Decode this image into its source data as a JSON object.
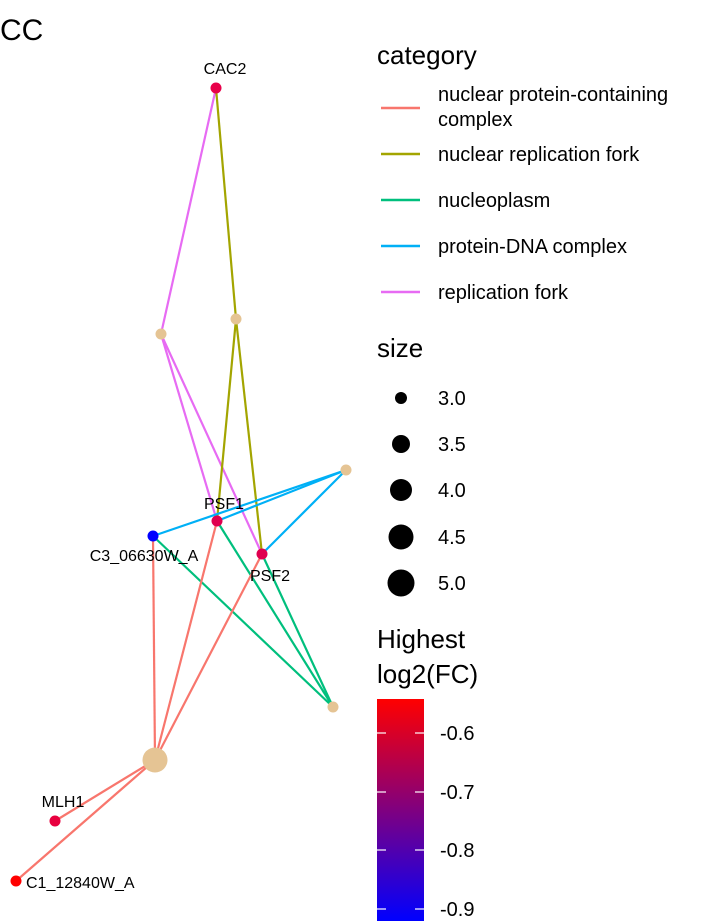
{
  "title": "CC",
  "legend_category": {
    "title": "category",
    "items": [
      {
        "label_lines": [
          "nuclear protein-containing",
          "complex"
        ],
        "color": "#F8766D"
      },
      {
        "label_lines": [
          "nuclear replication fork"
        ],
        "color": "#A3A500"
      },
      {
        "label_lines": [
          "nucleoplasm"
        ],
        "color": "#00BF7D"
      },
      {
        "label_lines": [
          "protein-DNA complex"
        ],
        "color": "#00B0F6"
      },
      {
        "label_lines": [
          "replication fork"
        ],
        "color": "#E76BF3"
      }
    ]
  },
  "legend_size": {
    "title": "size",
    "items": [
      "3.0",
      "3.5",
      "4.0",
      "4.5",
      "5.0"
    ]
  },
  "legend_color": {
    "title_lines": [
      "Highest",
      "log2(FC)"
    ],
    "ticks": [
      "-0.6",
      "-0.7",
      "-0.8",
      "-0.9"
    ],
    "color_high": "#FF0000",
    "color_low": "#0000FF"
  },
  "network": {
    "category_node_color": "#E5C494",
    "genes": [
      {
        "id": "CAC2",
        "label": "CAC2",
        "color": "#E8004A"
      },
      {
        "id": "PSF1",
        "label": "PSF1",
        "color": "#E0004F"
      },
      {
        "id": "PSF2",
        "label": "PSF2",
        "color": "#E0004F"
      },
      {
        "id": "C3_06630W_A",
        "label": "C3_06630W_A",
        "color": "#0000FF"
      },
      {
        "id": "MLH1",
        "label": "MLH1",
        "color": "#E8003F"
      },
      {
        "id": "C1_12840W_A",
        "label": "C1_12840W_A",
        "color": "#FF0000"
      }
    ],
    "categories": [
      {
        "id": "cat-replication-fork",
        "color": "#E76BF3"
      },
      {
        "id": "cat-nuclear-replication-fork",
        "color": "#A3A500"
      },
      {
        "id": "cat-protein-dna-complex",
        "color": "#00B0F6"
      },
      {
        "id": "cat-nucleoplasm",
        "color": "#00BF7D"
      },
      {
        "id": "cat-nuclear-protein-containing-complex",
        "color": "#F8766D"
      }
    ],
    "edges": [
      {
        "from": "CAC2",
        "to": "cat-replication-fork"
      },
      {
        "from": "CAC2",
        "to": "cat-nuclear-replication-fork"
      },
      {
        "from": "PSF1",
        "to": "cat-replication-fork"
      },
      {
        "from": "PSF2",
        "to": "cat-replication-fork"
      },
      {
        "from": "PSF1",
        "to": "cat-nuclear-replication-fork"
      },
      {
        "from": "PSF2",
        "to": "cat-nuclear-replication-fork"
      },
      {
        "from": "PSF1",
        "to": "cat-protein-dna-complex"
      },
      {
        "from": "PSF2",
        "to": "cat-protein-dna-complex"
      },
      {
        "from": "C3_06630W_A",
        "to": "cat-protein-dna-complex"
      },
      {
        "from": "PSF1",
        "to": "cat-nucleoplasm"
      },
      {
        "from": "PSF2",
        "to": "cat-nucleoplasm"
      },
      {
        "from": "C3_06630W_A",
        "to": "cat-nucleoplasm"
      },
      {
        "from": "PSF1",
        "to": "cat-nuclear-protein-containing-complex"
      },
      {
        "from": "PSF2",
        "to": "cat-nuclear-protein-containing-complex"
      },
      {
        "from": "C3_06630W_A",
        "to": "cat-nuclear-protein-containing-complex"
      },
      {
        "from": "MLH1",
        "to": "cat-nuclear-protein-containing-complex"
      },
      {
        "from": "C1_12840W_A",
        "to": "cat-nuclear-protein-containing-complex"
      }
    ]
  }
}
